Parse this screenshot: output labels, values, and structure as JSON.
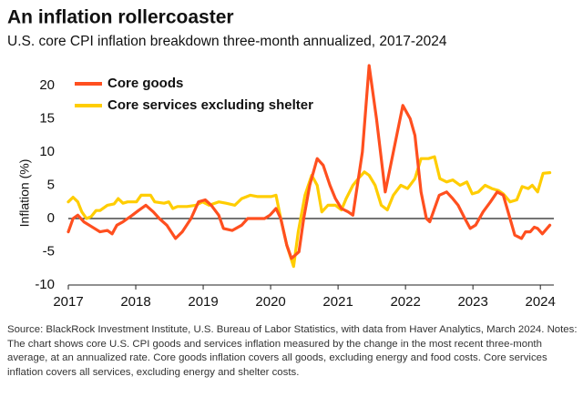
{
  "chart_data": {
    "type": "line",
    "title": "An inflation rollercoaster",
    "subtitle": "U.S. core CPI inflation breakdown three-month annualized, 2017-2024",
    "y_label": "Inflation (%)",
    "xlim": [
      2017,
      2024.2
    ],
    "xticks": [
      2017,
      2018,
      2019,
      2020,
      2021,
      2022,
      2023,
      2024
    ],
    "ylim": [
      -10,
      23
    ],
    "yticks": [
      -10,
      -5,
      0,
      5,
      10,
      15,
      20
    ],
    "legend": "top-left",
    "series": [
      {
        "name": "Core goods",
        "color": "#ff4f1f",
        "x": [
          2017.0,
          2017.07,
          2017.14,
          2017.23,
          2017.34,
          2017.47,
          2017.58,
          2017.65,
          2017.72,
          2017.81,
          2017.88,
          2017.95,
          2018.04,
          2018.15,
          2018.26,
          2018.35,
          2018.46,
          2018.59,
          2018.69,
          2018.82,
          2018.93,
          2019.03,
          2019.12,
          2019.23,
          2019.3,
          2019.43,
          2019.57,
          2019.66,
          2019.91,
          2019.99,
          2020.08,
          2020.15,
          2020.24,
          2020.31,
          2020.42,
          2020.49,
          2020.58,
          2020.69,
          2020.78,
          2020.88,
          2020.96,
          2021.05,
          2021.15,
          2021.22,
          2021.36,
          2021.46,
          2021.57,
          2021.7,
          2021.82,
          2021.96,
          2022.07,
          2022.14,
          2022.23,
          2022.31,
          2022.36,
          2022.5,
          2022.61,
          2022.7,
          2022.78,
          2022.88,
          2022.96,
          2023.04,
          2023.15,
          2023.26,
          2023.36,
          2023.45,
          2023.55,
          2023.62,
          2023.72,
          2023.78,
          2023.85,
          2023.91,
          2023.96,
          2024.03,
          2024.14
        ],
        "values": [
          -2,
          0,
          0.5,
          -0.5,
          -1.2,
          -2,
          -1.8,
          -2.3,
          -1,
          -0.5,
          0,
          0.5,
          1.2,
          2,
          1,
          0,
          -1,
          -3,
          -2,
          0,
          2.5,
          2.8,
          2,
          0.5,
          -1.5,
          -1.8,
          -1,
          0,
          0,
          0.5,
          1.5,
          0,
          -4,
          -6,
          -5,
          0,
          5,
          9,
          8,
          5,
          3,
          1.5,
          1,
          0.5,
          10,
          23,
          15,
          4,
          10,
          17,
          15,
          12.5,
          4,
          0,
          -0.5,
          3.5,
          4,
          3,
          2,
          0,
          -1.5,
          -1,
          1,
          2.5,
          4,
          3.5,
          0,
          -2.5,
          -3,
          -2,
          -2,
          -1.3,
          -1.5,
          -2.3,
          -1
        ]
      },
      {
        "name": "Core services excluding shelter",
        "color": "#ffcd00",
        "x": [
          2017.0,
          2017.07,
          2017.14,
          2017.2,
          2017.27,
          2017.34,
          2017.41,
          2017.47,
          2017.58,
          2017.68,
          2017.74,
          2017.81,
          2017.88,
          2018.01,
          2018.08,
          2018.22,
          2018.28,
          2018.42,
          2018.49,
          2018.55,
          2018.62,
          2018.76,
          2018.89,
          2018.99,
          2019.09,
          2019.23,
          2019.34,
          2019.47,
          2019.57,
          2019.7,
          2019.81,
          2019.91,
          2020.01,
          2020.08,
          2020.15,
          2020.24,
          2020.34,
          2020.41,
          2020.51,
          2020.61,
          2020.69,
          2020.76,
          2020.85,
          2020.96,
          2021.05,
          2021.12,
          2021.22,
          2021.3,
          2021.39,
          2021.46,
          2021.55,
          2021.64,
          2021.73,
          2021.82,
          2021.93,
          2022.03,
          2022.14,
          2022.23,
          2022.34,
          2022.43,
          2022.51,
          2022.61,
          2022.7,
          2022.81,
          2022.91,
          2022.99,
          2023.08,
          2023.18,
          2023.28,
          2023.38,
          2023.45,
          2023.55,
          2023.65,
          2023.73,
          2023.82,
          2023.88,
          2023.96,
          2024.04,
          2024.14
        ],
        "values": [
          2.5,
          3.2,
          2.5,
          1,
          0,
          0.3,
          1.2,
          1.2,
          2,
          2.2,
          3,
          2.3,
          2.5,
          2.5,
          3.5,
          3.5,
          2.5,
          2.3,
          2.5,
          1.5,
          1.8,
          1.8,
          2,
          2.5,
          2,
          2.5,
          2.3,
          2,
          3,
          3.5,
          3.3,
          3.3,
          3.3,
          3.5,
          0,
          -4,
          -7.2,
          -2,
          3.5,
          6.5,
          5,
          1,
          2,
          2,
          1.3,
          3,
          5,
          6,
          7,
          6.5,
          5,
          2,
          1.3,
          3.5,
          5,
          4.5,
          6,
          9,
          9,
          9.3,
          6,
          5.5,
          5.8,
          5,
          5.5,
          3.7,
          4,
          5,
          4.5,
          4.2,
          3.7,
          2.5,
          2.8,
          4.8,
          4.5,
          5,
          4,
          6.8,
          6.9
        ]
      }
    ],
    "note": "Source: BlackRock Investment Institute, U.S. Bureau of Labor Statistics, with data from Haver Analytics, March 2024. Notes: The chart shows core U.S. CPI goods and services inflation measured by the change in the most recent three-month average, at an annualized rate. Core goods inflation covers all goods, excluding energy and food costs. Core services inflation covers all services, excluding energy and shelter costs."
  }
}
